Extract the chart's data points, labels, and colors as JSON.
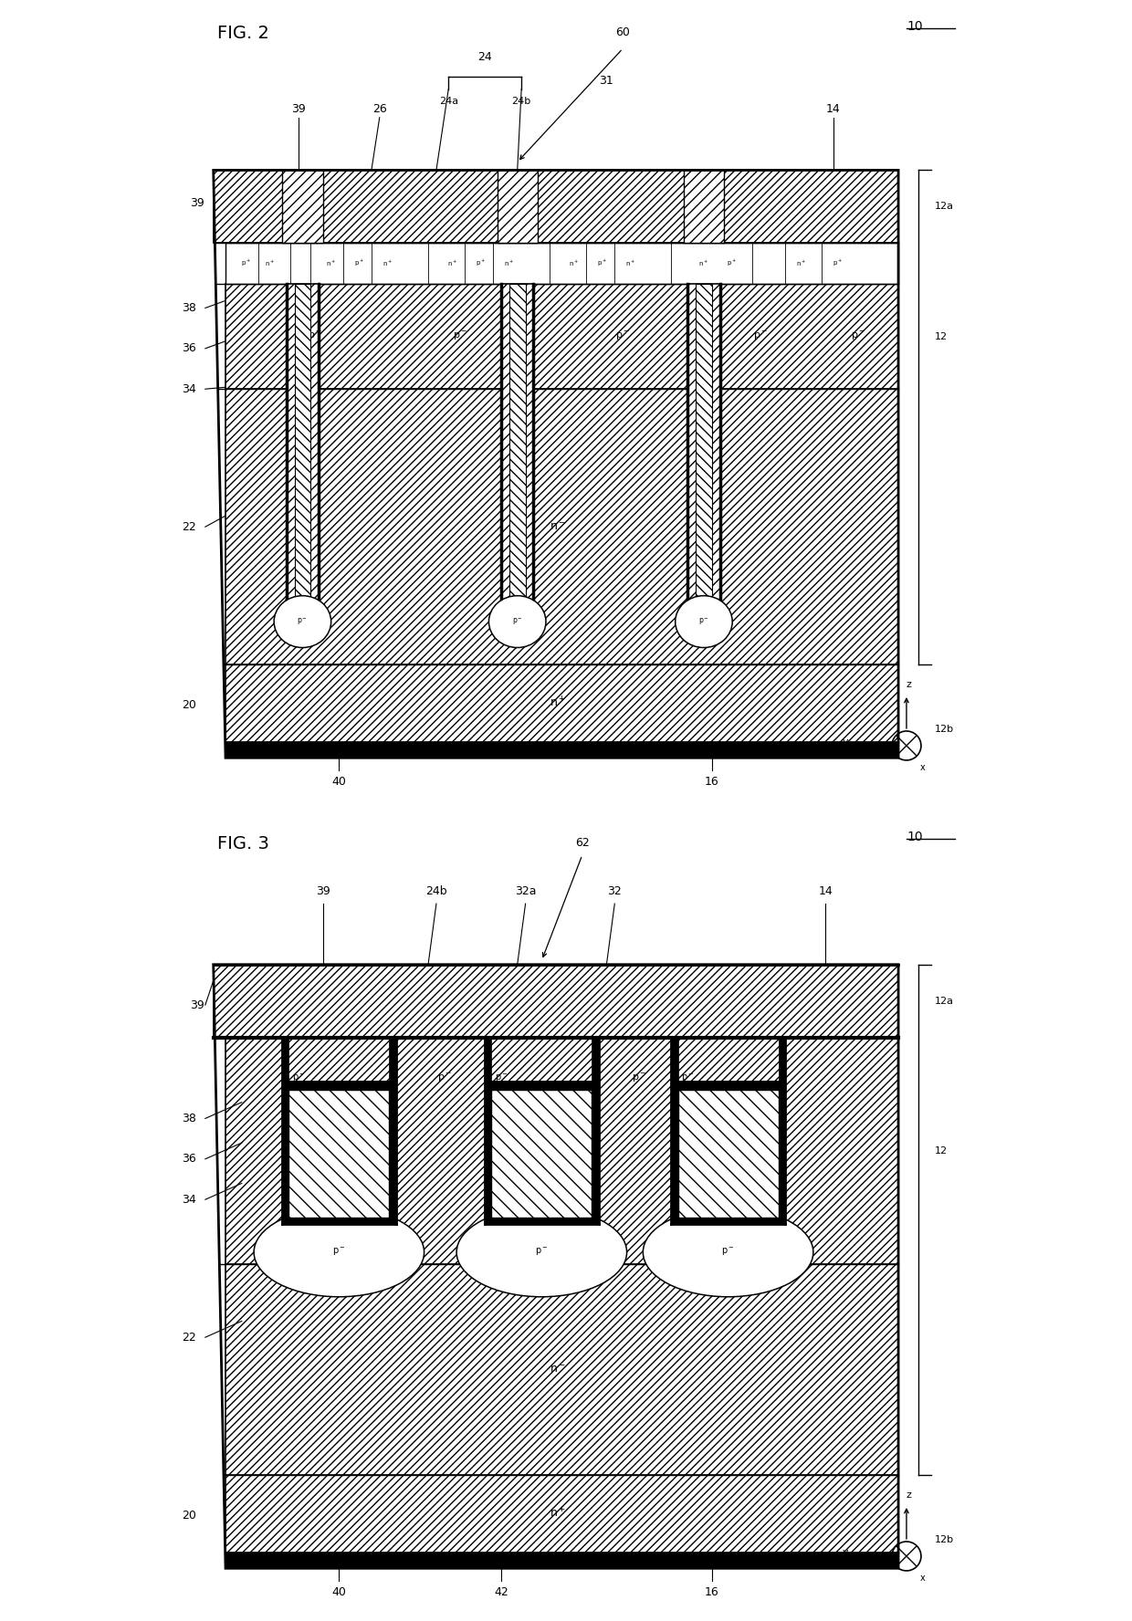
{
  "fig2_label": "FIG. 2",
  "fig3_label": "FIG. 3",
  "ref_10": "10",
  "bg": "#ffffff",
  "lw_main": 1.5,
  "lw_thin": 0.9,
  "hatch_diag": "////",
  "hatch_diag2": "///",
  "hatch_cross": "xxx"
}
